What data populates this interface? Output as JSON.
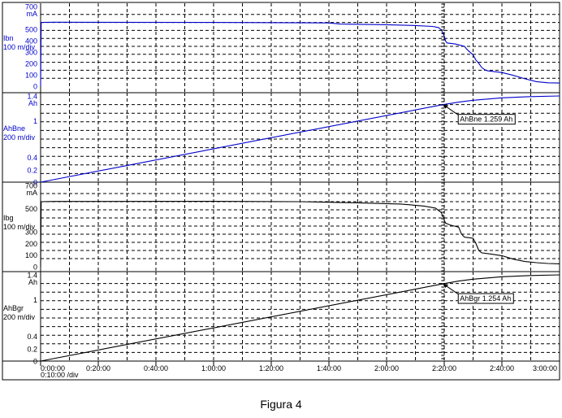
{
  "caption": "Figura 4",
  "x_axis": {
    "ticks": [
      "0:00:00",
      "0:20:00",
      "0:40:00",
      "1:00:00",
      "1:20:00",
      "1:40:00",
      "2:00:00",
      "2:20:00",
      "2:40:00",
      "3:00:00"
    ],
    "scale_label": "0:10:00 /div",
    "range_min": [
      0,
      180
    ],
    "cursor_min": 139.5
  },
  "colors": {
    "blue": "#0000cc",
    "black": "#000000",
    "grid": "#000000",
    "background": "#ffffff"
  },
  "chart_data": [
    {
      "type": "line",
      "name_label": "Ibn",
      "scale_label": "100 m/div",
      "unit": "mA",
      "color": "#0000cc",
      "ylim": [
        0,
        700
      ],
      "yticks": [
        0,
        100,
        200,
        300,
        400,
        500,
        700
      ],
      "x": [
        0,
        0.2,
        5,
        60,
        100,
        104,
        120,
        130,
        136,
        138,
        139,
        140,
        140.5,
        141,
        144,
        147,
        148,
        150,
        151,
        152,
        153,
        154,
        155,
        160,
        164,
        168,
        172,
        176,
        180
      ],
      "y": [
        0,
        560,
        562,
        560,
        556,
        546,
        540,
        533,
        525,
        515,
        495,
        440,
        395,
        380,
        370,
        350,
        320,
        275,
        230,
        200,
        165,
        145,
        135,
        120,
        95,
        65,
        40,
        30,
        28
      ],
      "cursor_label": ""
    },
    {
      "type": "line",
      "name_label": "AhBne",
      "scale_label": "200 m/div",
      "unit": "Ah",
      "color": "#0000cc",
      "ylim": [
        0,
        1.4
      ],
      "yticks": [
        0,
        0.2,
        0.4,
        1,
        1.4
      ],
      "x": [
        0,
        139.5,
        145,
        150,
        155,
        160,
        170,
        180
      ],
      "y": [
        0,
        1.259,
        1.3,
        1.33,
        1.35,
        1.37,
        1.39,
        1.4
      ],
      "cursor_label": "AhBne 1.259 Ah"
    },
    {
      "type": "line",
      "name_label": "Ibg",
      "scale_label": "100 m/div",
      "unit": "mA",
      "color": "#000000",
      "ylim": [
        0,
        700
      ],
      "yticks": [
        0,
        100,
        200,
        300,
        500,
        700
      ],
      "x": [
        0,
        0.2,
        5,
        60,
        90,
        110,
        125,
        133,
        137,
        139,
        140,
        140.5,
        142,
        145,
        146,
        147,
        150,
        151,
        152,
        153,
        156,
        160,
        164,
        168,
        172,
        176,
        180
      ],
      "y": [
        0,
        560,
        562,
        563,
        560,
        550,
        540,
        522,
        505,
        465,
        400,
        375,
        360,
        340,
        280,
        255,
        245,
        200,
        140,
        120,
        110,
        95,
        65,
        45,
        35,
        28,
        25
      ],
      "cursor_label": ""
    },
    {
      "type": "line",
      "name_label": "AhBgr",
      "scale_label": "200 m/div",
      "unit": "Ah",
      "color": "#000000",
      "ylim": [
        0,
        1.4
      ],
      "yticks": [
        0,
        0.2,
        0.4,
        1,
        1.4
      ],
      "x": [
        0,
        139.5,
        145,
        150,
        155,
        160,
        170,
        180
      ],
      "y": [
        0,
        1.254,
        1.3,
        1.33,
        1.35,
        1.37,
        1.39,
        1.4
      ],
      "cursor_label": "AhBgr 1.254 Ah"
    }
  ]
}
